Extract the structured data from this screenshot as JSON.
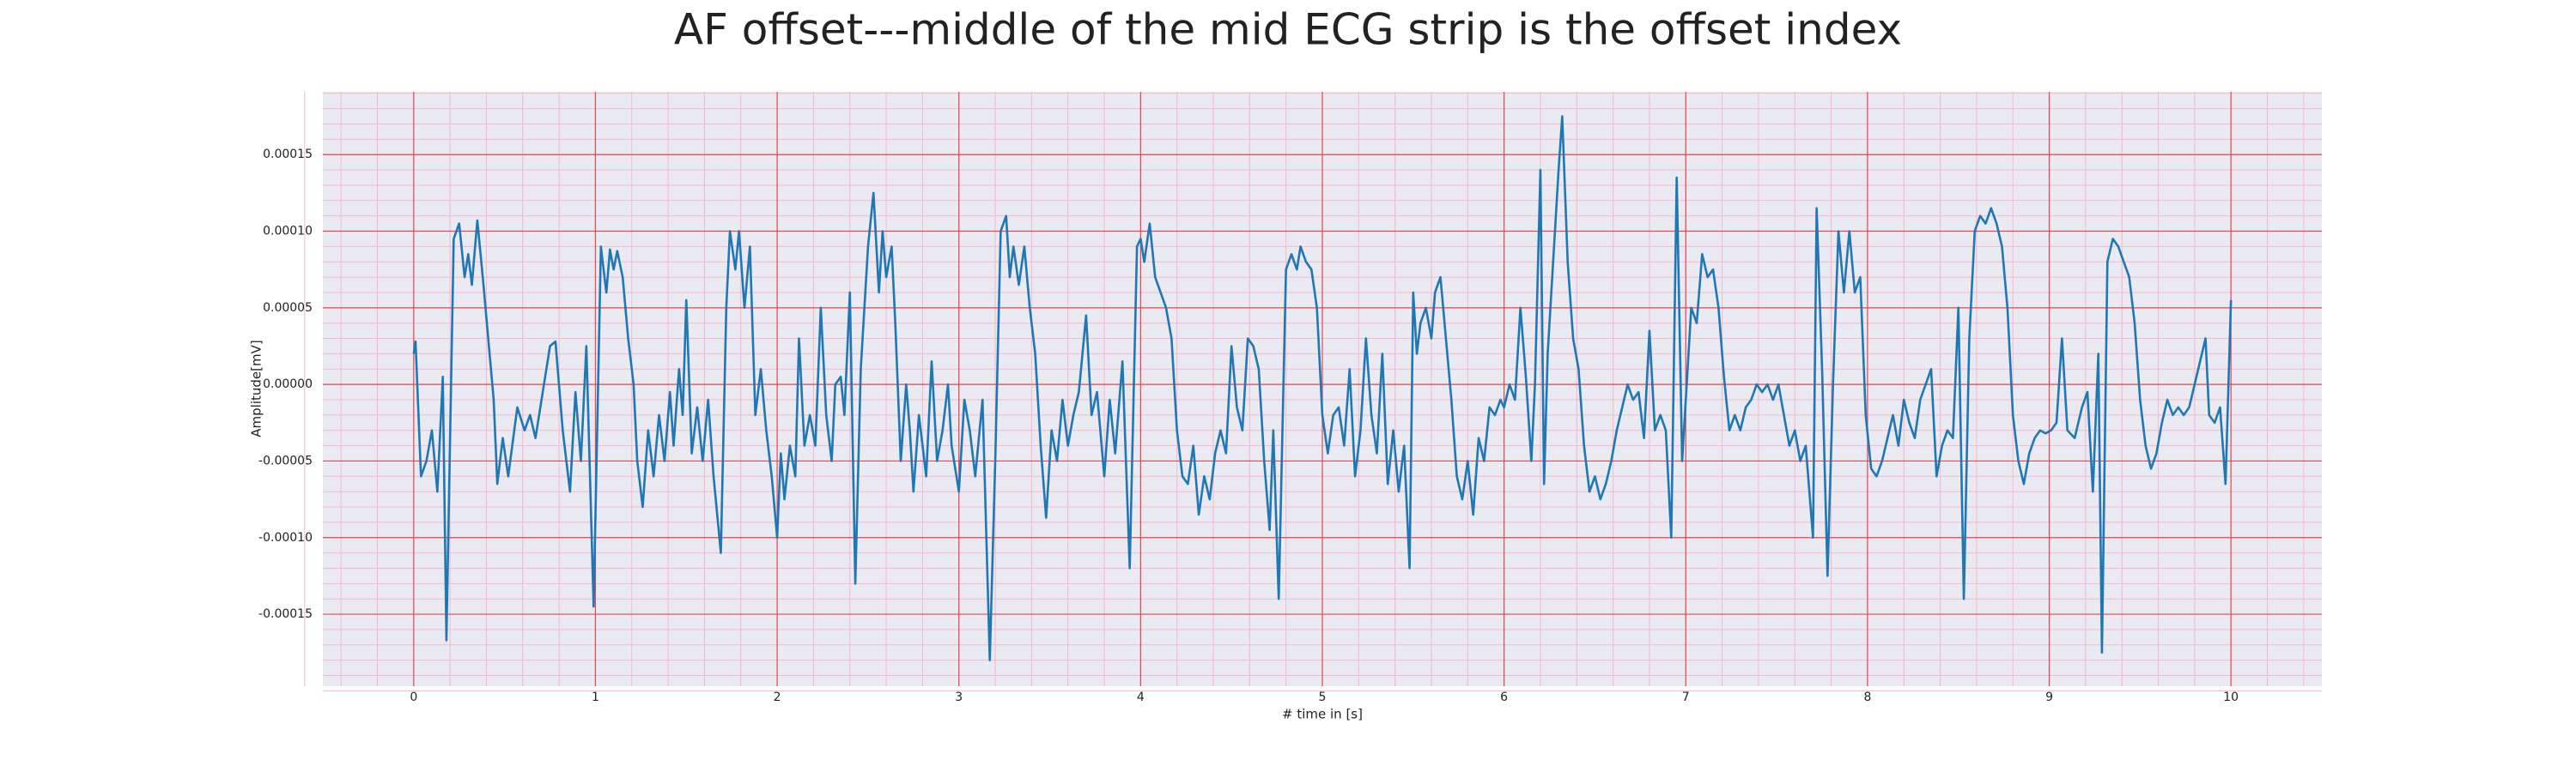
{
  "chart_data": {
    "type": "line",
    "title": "AF offset---middle of the mid ECG strip is the offset index",
    "xlabel": "# time in [s]",
    "ylabel": "Amplitude[mV]",
    "color": "#1f77b4",
    "grid": true,
    "minor_grid": true,
    "xlim": [
      -0.5,
      10.5
    ],
    "ylim": [
      -0.000197,
      0.000191
    ],
    "xticks": [
      0,
      1,
      2,
      3,
      4,
      5,
      6,
      7,
      8,
      9,
      10
    ],
    "yticks": [
      -0.00015,
      {
        "value": -0.0001,
        "label": "-0.00010"
      },
      -5e-05,
      {
        "value": 0,
        "label": "0.00000"
      },
      5e-05,
      {
        "value": 0.0001,
        "label": "0.00010"
      },
      0.00015
    ],
    "x": [
      0.0,
      0.01,
      0.04,
      0.07,
      0.1,
      0.13,
      0.16,
      0.18,
      0.22,
      0.25,
      0.28,
      0.3,
      0.32,
      0.35,
      0.38,
      0.41,
      0.44,
      0.46,
      0.49,
      0.52,
      0.57,
      0.61,
      0.64,
      0.67,
      0.71,
      0.75,
      0.78,
      0.82,
      0.86,
      0.89,
      0.92,
      0.95,
      0.99,
      1.03,
      1.06,
      1.08,
      1.1,
      1.12,
      1.15,
      1.18,
      1.21,
      1.23,
      1.26,
      1.29,
      1.32,
      1.35,
      1.38,
      1.41,
      1.43,
      1.46,
      1.48,
      1.5,
      1.53,
      1.56,
      1.59,
      1.62,
      1.65,
      1.69,
      1.72,
      1.74,
      1.77,
      1.79,
      1.82,
      1.85,
      1.88,
      1.91,
      1.94,
      1.97,
      2.0,
      2.02,
      2.04,
      2.07,
      2.1,
      2.12,
      2.15,
      2.18,
      2.21,
      2.24,
      2.27,
      2.3,
      2.32,
      2.35,
      2.37,
      2.4,
      2.43,
      2.46,
      2.5,
      2.53,
      2.56,
      2.58,
      2.6,
      2.63,
      2.65,
      2.68,
      2.71,
      2.73,
      2.75,
      2.78,
      2.82,
      2.85,
      2.88,
      2.91,
      2.94,
      2.96,
      3.0,
      3.03,
      3.06,
      3.09,
      3.13,
      3.17,
      3.2,
      3.23,
      3.26,
      3.28,
      3.3,
      3.33,
      3.36,
      3.39,
      3.42,
      3.45,
      3.48,
      3.51,
      3.54,
      3.57,
      3.6,
      3.63,
      3.66,
      3.7,
      3.73,
      3.76,
      3.8,
      3.83,
      3.86,
      3.9,
      3.94,
      3.98,
      4.0,
      4.02,
      4.05,
      4.08,
      4.11,
      4.14,
      4.17,
      4.2,
      4.23,
      4.26,
      4.29,
      4.32,
      4.35,
      4.38,
      4.41,
      4.44,
      4.47,
      4.5,
      4.53,
      4.56,
      4.59,
      4.62,
      4.65,
      4.68,
      4.71,
      4.73,
      4.76,
      4.8,
      4.83,
      4.86,
      4.88,
      4.91,
      4.94,
      4.97,
      5.0,
      5.03,
      5.06,
      5.09,
      5.12,
      5.15,
      5.18,
      5.21,
      5.24,
      5.27,
      5.3,
      5.33,
      5.36,
      5.39,
      5.42,
      5.45,
      5.48,
      5.5,
      5.52,
      5.54,
      5.57,
      5.6,
      5.62,
      5.65,
      5.68,
      5.71,
      5.74,
      5.77,
      5.8,
      5.83,
      5.86,
      5.89,
      5.92,
      5.95,
      5.98,
      6.0,
      6.03,
      6.06,
      6.09,
      6.12,
      6.15,
      6.17,
      6.2,
      6.22,
      6.24,
      6.27,
      6.3,
      6.32,
      6.35,
      6.38,
      6.41,
      6.44,
      6.47,
      6.5,
      6.53,
      6.56,
      6.59,
      6.62,
      6.65,
      6.68,
      6.71,
      6.74,
      6.77,
      6.8,
      6.83,
      6.86,
      6.89,
      6.92,
      6.95,
      6.98,
      7.0,
      7.03,
      7.06,
      7.09,
      7.12,
      7.15,
      7.18,
      7.21,
      7.24,
      7.27,
      7.3,
      7.33,
      7.36,
      7.39,
      7.42,
      7.45,
      7.48,
      7.51,
      7.54,
      7.57,
      7.6,
      7.63,
      7.66,
      7.7,
      7.72,
      7.75,
      7.78,
      7.81,
      7.84,
      7.87,
      7.9,
      7.93,
      7.96,
      7.99,
      8.02,
      8.05,
      8.08,
      8.11,
      8.14,
      8.17,
      8.2,
      8.23,
      8.26,
      8.29,
      8.32,
      8.35,
      8.38,
      8.41,
      8.44,
      8.47,
      8.5,
      8.53,
      8.56,
      8.59,
      8.62,
      8.65,
      8.68,
      8.71,
      8.74,
      8.77,
      8.8,
      8.83,
      8.86,
      8.89,
      8.92,
      8.95,
      8.98,
      9.01,
      9.04,
      9.07,
      9.1,
      9.14,
      9.18,
      9.21,
      9.24,
      9.27,
      9.29,
      9.32,
      9.35,
      9.38,
      9.41,
      9.44,
      9.47,
      9.5,
      9.53,
      9.56,
      9.59,
      9.62,
      9.65,
      9.68,
      9.71,
      9.74,
      9.77,
      9.8,
      9.83,
      9.86,
      9.88,
      9.91,
      9.94,
      9.97,
      10.0
    ],
    "values": [
      2e-05,
      2.8e-05,
      -6e-05,
      -5e-05,
      -3e-05,
      -7e-05,
      5e-06,
      -0.000167,
      9.5e-05,
      0.000105,
      7e-05,
      8.5e-05,
      6.5e-05,
      0.000107,
      7e-05,
      3e-05,
      -1e-05,
      -6.5e-05,
      -3.5e-05,
      -6e-05,
      -1.5e-05,
      -3e-05,
      -2e-05,
      -3.5e-05,
      -5e-06,
      2.5e-05,
      2.8e-05,
      -3e-05,
      -7e-05,
      -5e-06,
      -5e-05,
      2.5e-05,
      -0.000145,
      9e-05,
      6e-05,
      8.8e-05,
      7.5e-05,
      8.7e-05,
      7e-05,
      3e-05,
      0,
      -5e-05,
      -8e-05,
      -3e-05,
      -6e-05,
      -2e-05,
      -5e-05,
      -5e-06,
      -4e-05,
      1e-05,
      -2e-05,
      5.5e-05,
      -4.5e-05,
      -1.5e-05,
      -5e-05,
      -1e-05,
      -6e-05,
      -0.00011,
      5e-05,
      0.0001,
      7.5e-05,
      0.0001,
      5e-05,
      9e-05,
      -2e-05,
      1e-05,
      -3e-05,
      -6e-05,
      -0.0001,
      -4.5e-05,
      -7.5e-05,
      -4e-05,
      -6e-05,
      3e-05,
      -4e-05,
      -2e-05,
      -4e-05,
      5e-05,
      -2e-05,
      -5e-05,
      0,
      5e-06,
      -2e-05,
      6e-05,
      -0.00013,
      1e-05,
      9e-05,
      0.000125,
      6e-05,
      0.0001,
      7e-05,
      9e-05,
      4e-05,
      -5e-05,
      0,
      -3e-05,
      -7e-05,
      -2e-05,
      -6e-05,
      1.5e-05,
      -5e-05,
      -3e-05,
      0,
      -4e-05,
      -7e-05,
      -1e-05,
      -3e-05,
      -6e-05,
      -1e-05,
      -0.00018,
      -5e-05,
      0.0001,
      0.00011,
      7e-05,
      9e-05,
      6.5e-05,
      9e-05,
      5e-05,
      2e-05,
      -4e-05,
      -8.7e-05,
      -3e-05,
      -5e-05,
      -1e-05,
      -4e-05,
      -2e-05,
      -5e-06,
      4.5e-05,
      -2e-05,
      -5e-06,
      -6e-05,
      -1e-05,
      -4.5e-05,
      1.5e-05,
      -0.00012,
      9e-05,
      9.5e-05,
      8e-05,
      0.000105,
      7e-05,
      6e-05,
      5e-05,
      3e-05,
      -3e-05,
      -6e-05,
      -6.5e-05,
      -4e-05,
      -8.5e-05,
      -6e-05,
      -7.5e-05,
      -4.5e-05,
      -3e-05,
      -4.5e-05,
      2.5e-05,
      -1.5e-05,
      -3e-05,
      3e-05,
      2.5e-05,
      1e-05,
      -5e-05,
      -9.5e-05,
      -3e-05,
      -0.00014,
      7.5e-05,
      8.5e-05,
      7.5e-05,
      9e-05,
      8e-05,
      7.5e-05,
      5e-05,
      -2e-05,
      -4.5e-05,
      -2e-05,
      -1.5e-05,
      -4e-05,
      1e-05,
      -6e-05,
      -3e-05,
      3e-05,
      -2e-05,
      -4.5e-05,
      2e-05,
      -6.5e-05,
      -3e-05,
      -7e-05,
      -4e-05,
      -0.00012,
      6e-05,
      2e-05,
      4e-05,
      5e-05,
      3e-05,
      6e-05,
      7e-05,
      3e-05,
      -1e-05,
      -6e-05,
      -7.5e-05,
      -5e-05,
      -8.5e-05,
      -3.5e-05,
      -5e-05,
      -1.5e-05,
      -2e-05,
      -1e-05,
      -1.5e-05,
      0,
      -1e-05,
      5e-05,
      5e-06,
      -5e-05,
      0,
      0.00014,
      -6.5e-05,
      2e-05,
      8e-05,
      0.00014,
      0.000175,
      8e-05,
      3e-05,
      1e-05,
      -4e-05,
      -7e-05,
      -6e-05,
      -7.5e-05,
      -6.5e-05,
      -5e-05,
      -3e-05,
      -1.5e-05,
      0,
      -1e-05,
      -5e-06,
      -3.5e-05,
      3.5e-05,
      -3e-05,
      -2e-05,
      -3e-05,
      -0.0001,
      0.000135,
      -5e-05,
      -1e-05,
      5e-05,
      4e-05,
      8.5e-05,
      7e-05,
      7.5e-05,
      5e-05,
      5e-06,
      -3e-05,
      -2e-05,
      -3e-05,
      -1.5e-05,
      -1e-05,
      0,
      -5e-06,
      0,
      -1e-05,
      0,
      -2e-05,
      -4e-05,
      -3e-05,
      -5e-05,
      -4e-05,
      -0.0001,
      0.000115,
      1e-05,
      -0.000125,
      0,
      0.0001,
      6e-05,
      0.0001,
      6e-05,
      7e-05,
      -2e-05,
      -5.5e-05,
      -6e-05,
      -5e-05,
      -3.5e-05,
      -2e-05,
      -4e-05,
      -1e-05,
      -2.5e-05,
      -3.5e-05,
      -1e-05,
      0,
      1e-05,
      -6e-05,
      -4e-05,
      -3e-05,
      -3.5e-05,
      5e-05,
      -0.00014,
      3e-05,
      0.0001,
      0.00011,
      0.000105,
      0.000115,
      0.000105,
      9e-05,
      5e-05,
      -2e-05,
      -5e-05,
      -6.5e-05,
      -4.5e-05,
      -3.5e-05,
      -3e-05,
      -3.2e-05,
      -3e-05,
      -2.5e-05,
      3e-05,
      -3e-05,
      -3.5e-05,
      -1.5e-05,
      -5e-06,
      -7e-05,
      2e-05,
      -0.000175,
      8e-05,
      9.5e-05,
      9e-05,
      8e-05,
      7e-05,
      4e-05,
      -1e-05,
      -4e-05,
      -5.5e-05,
      -4.5e-05,
      -2.5e-05,
      -1e-05,
      -2e-05,
      -1.5e-05,
      -2e-05,
      -1.5e-05,
      0,
      1.5e-05,
      3e-05,
      -2e-05,
      -2.5e-05,
      -1.5e-05,
      -6.5e-05,
      5.5e-05
    ]
  }
}
